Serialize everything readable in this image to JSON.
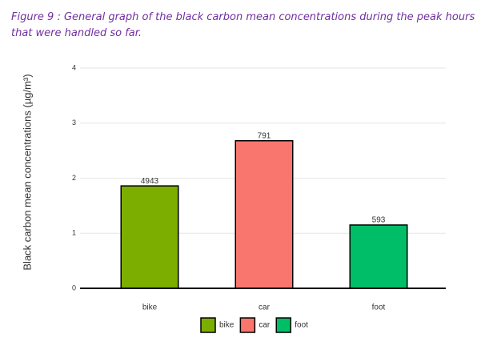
{
  "chart_data": {
    "type": "bar",
    "title": "Figure 9 : General graph of the black carbon mean concentrations during the peak hours that were handled so far.",
    "y_label": "Black carbon mean concentrations (µg/m³)",
    "categories": [
      "bike",
      "car",
      "foot"
    ],
    "series": [
      {
        "name": "bike",
        "color": "#7cae00"
      },
      {
        "name": "car",
        "color": "#f8766d"
      },
      {
        "name": "foot",
        "color": "#00be67"
      }
    ],
    "values": [
      1.86,
      2.68,
      1.15
    ],
    "counts": [
      4943,
      791,
      593
    ],
    "ylim": [
      0,
      4
    ],
    "yticks": [
      0,
      1,
      2,
      3,
      4
    ],
    "grid": true,
    "legend": "bottom"
  }
}
